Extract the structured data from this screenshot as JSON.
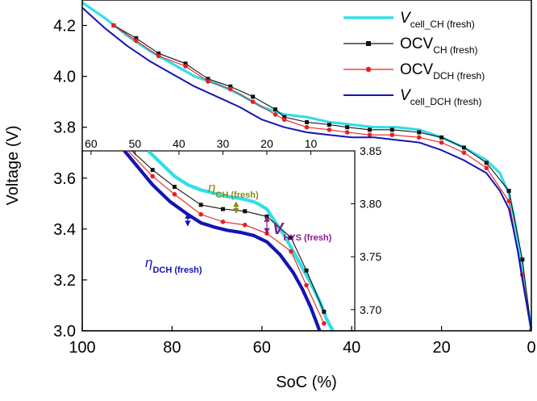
{
  "colors": {
    "cyan": "#33dde8",
    "black": "#111111",
    "red": "#e82020",
    "blue": "#1414b4",
    "olive": "#8a8a10",
    "purple": "#8a1a8a"
  },
  "chart_data": [
    {
      "id": "main",
      "type": "line",
      "xlabel": "SoC (%)",
      "ylabel": "Voltage (V)",
      "xlim": [
        100,
        0
      ],
      "ylim": [
        3.0,
        4.3
      ],
      "xticks": [
        100,
        80,
        60,
        40,
        20,
        0
      ],
      "xtick_labels": [
        "100",
        "80",
        "60",
        "40",
        "20",
        "0"
      ],
      "yticks": [
        3.0,
        3.2,
        3.4,
        3.6,
        3.8,
        4.0,
        4.2
      ],
      "ytick_labels": [
        "3.0",
        "3.2",
        "3.4",
        "3.6",
        "3.8",
        "4.0",
        "4.2"
      ],
      "legend": {
        "placement": "top-right",
        "entries": [
          {
            "series": "V_cell_CH",
            "main": "V",
            "main_italic": true,
            "sub": "cell_CH (fresh)"
          },
          {
            "series": "OCV_CH",
            "main": "OCV",
            "main_italic": false,
            "sub": "CH (fresh)"
          },
          {
            "series": "OCV_DCH",
            "main": "OCV",
            "main_italic": false,
            "sub": "DCH (fresh)"
          },
          {
            "series": "V_cell_DCH",
            "main": "V",
            "main_italic": true,
            "sub": "cell_DCH (fresh)"
          }
        ]
      },
      "series": [
        {
          "name": "V_cell_CH",
          "color": "cyan",
          "marker": "none",
          "x": [
            100,
            95,
            90,
            85,
            80,
            75,
            70,
            65,
            60,
            55,
            50,
            45,
            40,
            35,
            30,
            25,
            20,
            15,
            10,
            7,
            5,
            4,
            3,
            2,
            1,
            0
          ],
          "y": [
            4.29,
            4.23,
            4.16,
            4.1,
            4.05,
            4.0,
            3.97,
            3.93,
            3.88,
            3.85,
            3.84,
            3.82,
            3.81,
            3.8,
            3.8,
            3.79,
            3.76,
            3.72,
            3.67,
            3.62,
            3.54,
            3.46,
            3.36,
            3.24,
            3.12,
            3.0
          ]
        },
        {
          "name": "OCV_CH",
          "color": "black",
          "marker": "square",
          "x": [
            93,
            88,
            83,
            77,
            72,
            67,
            62,
            57,
            55,
            50,
            45,
            41,
            36,
            31,
            25,
            20,
            15,
            10,
            5,
            2,
            0
          ],
          "y": [
            4.2,
            4.15,
            4.09,
            4.05,
            3.99,
            3.96,
            3.92,
            3.87,
            3.84,
            3.82,
            3.81,
            3.8,
            3.79,
            3.79,
            3.78,
            3.76,
            3.72,
            3.66,
            3.55,
            3.28,
            3.0
          ]
        },
        {
          "name": "OCV_DCH",
          "color": "red",
          "marker": "circle",
          "x": [
            93,
            88,
            83,
            77,
            72,
            67,
            62,
            57,
            55,
            50,
            45,
            41,
            36,
            31,
            25,
            20,
            15,
            10,
            5,
            2,
            0
          ],
          "y": [
            4.2,
            4.14,
            4.08,
            4.04,
            3.98,
            3.95,
            3.9,
            3.85,
            3.83,
            3.8,
            3.79,
            3.78,
            3.77,
            3.77,
            3.76,
            3.74,
            3.7,
            3.64,
            3.51,
            3.22,
            3.0
          ]
        },
        {
          "name": "V_cell_DCH",
          "color": "blue",
          "marker": "none",
          "x": [
            100,
            95,
            90,
            85,
            80,
            75,
            70,
            65,
            60,
            55,
            50,
            45,
            40,
            35,
            30,
            25,
            20,
            15,
            10,
            7,
            5,
            4,
            3,
            2,
            1,
            0
          ],
          "y": [
            4.27,
            4.19,
            4.12,
            4.06,
            4.01,
            3.96,
            3.92,
            3.88,
            3.83,
            3.8,
            3.78,
            3.77,
            3.76,
            3.76,
            3.75,
            3.74,
            3.71,
            3.67,
            3.62,
            3.55,
            3.48,
            3.4,
            3.31,
            3.2,
            3.1,
            3.0
          ]
        }
      ]
    },
    {
      "id": "inset",
      "type": "line",
      "xlim": [
        62,
        0
      ],
      "ylim": [
        3.68,
        3.85
      ],
      "xticks": [
        60,
        50,
        40,
        30,
        20,
        10
      ],
      "xtick_labels": [
        "60",
        "50",
        "40",
        "30",
        "20",
        "10"
      ],
      "yticks": [
        3.7,
        3.75,
        3.8,
        3.85
      ],
      "ytick_labels": [
        "3.70",
        "3.75",
        "3.80",
        "3.85"
      ],
      "series": [
        {
          "name": "V_cell_CH",
          "color": "cyan",
          "marker": "none",
          "x": [
            47,
            44,
            41,
            38,
            35,
            32,
            29,
            26,
            23,
            22,
            20,
            18,
            16,
            14,
            12,
            10,
            8,
            6.5,
            5
          ],
          "y": [
            3.85,
            3.838,
            3.826,
            3.818,
            3.813,
            3.81,
            3.807,
            3.805,
            3.802,
            3.8,
            3.795,
            3.782,
            3.77,
            3.755,
            3.74,
            3.725,
            3.708,
            3.692,
            3.68
          ]
        },
        {
          "name": "OCV_CH",
          "color": "black",
          "marker": "square",
          "x": [
            52,
            46,
            41,
            35,
            30,
            25,
            20,
            14.5,
            11,
            7
          ],
          "y": [
            3.855,
            3.832,
            3.816,
            3.799,
            3.795,
            3.793,
            3.788,
            3.768,
            3.737,
            3.698
          ]
        },
        {
          "name": "OCV_DCH",
          "color": "red",
          "marker": "circle",
          "x": [
            52,
            46,
            41,
            35,
            30,
            25,
            20,
            14.5,
            11,
            7
          ],
          "y": [
            3.852,
            3.826,
            3.809,
            3.79,
            3.783,
            3.78,
            3.772,
            3.755,
            3.723,
            3.687
          ]
        },
        {
          "name": "V_cell_DCH",
          "color": "blue",
          "marker": "none",
          "x": [
            55,
            50,
            46,
            42,
            38,
            35,
            32,
            29,
            26,
            23,
            20,
            17,
            14,
            12,
            10,
            8
          ],
          "y": [
            3.863,
            3.838,
            3.818,
            3.802,
            3.79,
            3.782,
            3.778,
            3.775,
            3.773,
            3.77,
            3.764,
            3.752,
            3.735,
            3.72,
            3.702,
            3.68
          ]
        }
      ],
      "annotations": {
        "eta_ch": {
          "main": "η",
          "sub": "CH (fresh)",
          "color": "olive",
          "at_x": 27,
          "y_from": 3.791,
          "y_to": 3.802
        },
        "eta_dch": {
          "main": "η",
          "sub": "DCH (fresh)",
          "color": "blue",
          "at_x": 38,
          "y_from": 3.779,
          "y_to": 3.791
        },
        "v_hys": {
          "main": "V",
          "sub": "HYS (fresh)",
          "color": "purple",
          "at_x": 20,
          "y_from": 3.772,
          "y_to": 3.788
        }
      }
    }
  ]
}
